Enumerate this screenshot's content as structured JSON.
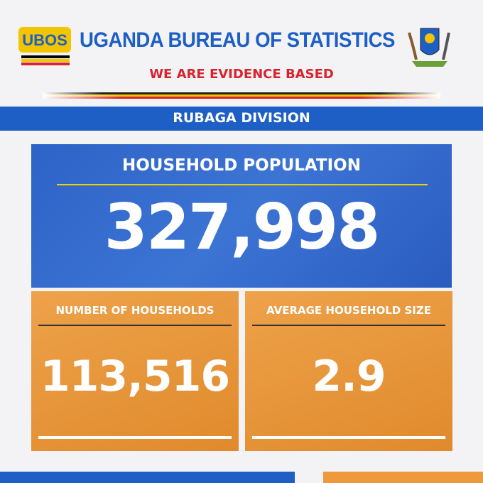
{
  "header": {
    "logo_text": "UBOS",
    "title": "UGANDA BUREAU OF STATISTICS",
    "tagline": "WE ARE EVIDENCE BASED"
  },
  "division": "RUBAGA DIVISION",
  "main_card": {
    "label": "HOUSEHOLD POPULATION",
    "value": "327,998"
  },
  "cards": [
    {
      "label": "NUMBER OF HOUSEHOLDS",
      "value": "113,516"
    },
    {
      "label": "AVERAGE HOUSEHOLD SIZE",
      "value": "2.9"
    }
  ]
}
